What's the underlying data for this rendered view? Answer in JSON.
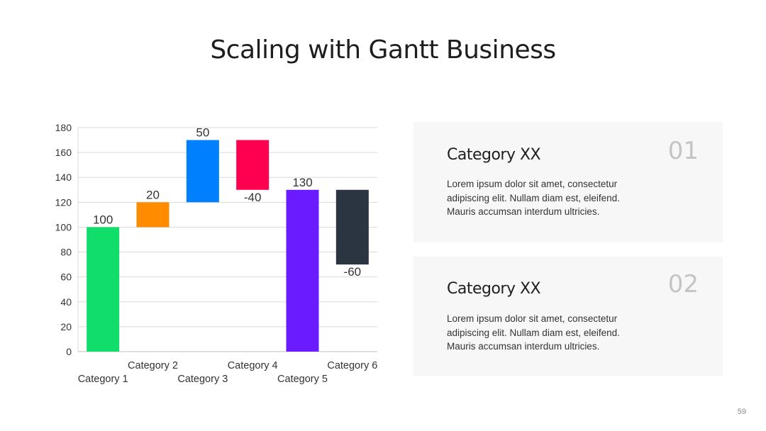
{
  "slide": {
    "title": "Scaling with Gantt Business",
    "page_number": "59"
  },
  "cards": [
    {
      "title": "Category XX",
      "number": "01",
      "body": "Lorem ipsum dolor sit amet, consectetur adipiscing elit. Nullam diam est, eleifend. Mauris accumsan interdum ultricies."
    },
    {
      "title": "Category XX",
      "number": "02",
      "body": "Lorem ipsum dolor sit amet, consectetur adipiscing elit. Nullam diam est, eleifend. Mauris accumsan interdum ultricies."
    }
  ],
  "chart_data": {
    "type": "bar",
    "subtype": "waterfall",
    "categories": [
      "Category 1",
      "Category 2",
      "Category 3",
      "Category 4",
      "Category 5",
      "Category 6"
    ],
    "values": [
      100,
      20,
      50,
      -40,
      130,
      -60
    ],
    "value_labels": [
      "100",
      "20",
      "50",
      "-40",
      "130",
      "-60"
    ],
    "bar_ranges": [
      [
        0,
        100
      ],
      [
        100,
        120
      ],
      [
        120,
        170
      ],
      [
        130,
        170
      ],
      [
        0,
        130
      ],
      [
        70,
        130
      ]
    ],
    "colors": [
      "#11dd6b",
      "#ff8c00",
      "#0080ff",
      "#ff0050",
      "#6a1bff",
      "#2b3441"
    ],
    "ylim": [
      0,
      180
    ],
    "yticks": [
      0,
      20,
      40,
      60,
      80,
      100,
      120,
      140,
      160,
      180
    ],
    "grid": true,
    "legend": "none"
  }
}
